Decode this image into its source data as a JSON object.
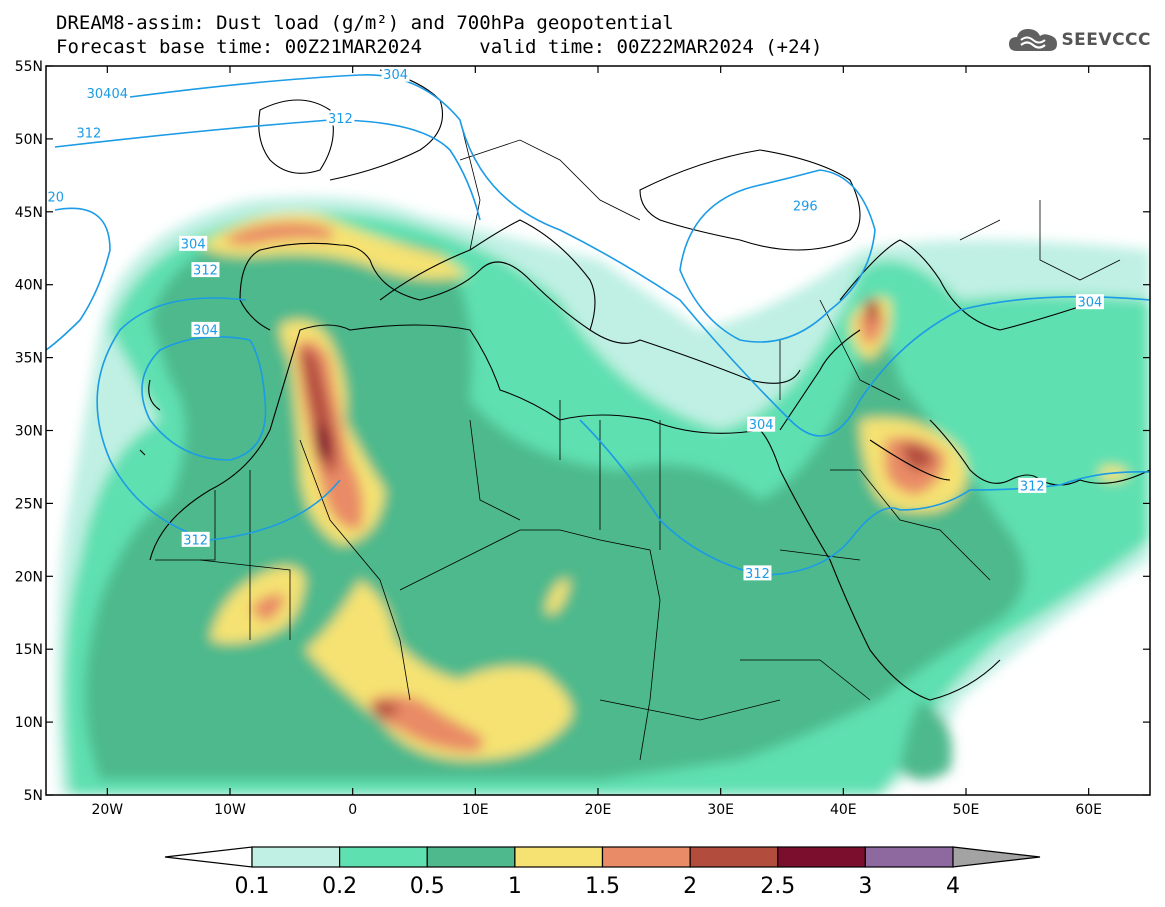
{
  "title": {
    "line1": "DREAM8-assim: Dust load (g/m²) and 700hPa geopotential",
    "base_time_label": "Forecast base time: 00Z21MAR2024",
    "valid_time_label": "valid time: 00Z22MAR2024 (+24)"
  },
  "logo": {
    "text": "SEEVCCC",
    "icon": "cloud-icon"
  },
  "map": {
    "lon_range": [
      -25,
      65
    ],
    "lat_range": [
      5,
      55
    ],
    "lon_ticks": [
      {
        "value": -20,
        "label": "20W"
      },
      {
        "value": -10,
        "label": "10W"
      },
      {
        "value": 0,
        "label": "0"
      },
      {
        "value": 10,
        "label": "10E"
      },
      {
        "value": 20,
        "label": "20E"
      },
      {
        "value": 30,
        "label": "30E"
      },
      {
        "value": 40,
        "label": "40E"
      },
      {
        "value": 50,
        "label": "50E"
      },
      {
        "value": 60,
        "label": "60E"
      }
    ],
    "lat_ticks": [
      {
        "value": 5,
        "label": "5N"
      },
      {
        "value": 10,
        "label": "10N"
      },
      {
        "value": 15,
        "label": "15N"
      },
      {
        "value": 20,
        "label": "20N"
      },
      {
        "value": 25,
        "label": "25N"
      },
      {
        "value": 30,
        "label": "30N"
      },
      {
        "value": 35,
        "label": "35N"
      },
      {
        "value": 40,
        "label": "40N"
      },
      {
        "value": 45,
        "label": "45N"
      },
      {
        "value": 50,
        "label": "50N"
      },
      {
        "value": 55,
        "label": "55N"
      }
    ],
    "contour_labels": [
      {
        "text": "304",
        "lon": 3.5,
        "lat": 54.4
      },
      {
        "text": "304",
        "lon": -13,
        "lat": 42.8
      },
      {
        "text": "30404",
        "lon": -20,
        "lat": 53.1
      },
      {
        "text": "312",
        "lon": -1,
        "lat": 51.4
      },
      {
        "text": "312",
        "lon": -21.5,
        "lat": 50.4
      },
      {
        "text": "20",
        "lon": -24.2,
        "lat": 46
      },
      {
        "text": "312",
        "lon": -12,
        "lat": 41
      },
      {
        "text": "304",
        "lon": -12,
        "lat": 36.9
      },
      {
        "text": "296",
        "lon": 36.9,
        "lat": 45.4
      },
      {
        "text": "304",
        "lon": 60.1,
        "lat": 38.8
      },
      {
        "text": "304",
        "lon": 33.3,
        "lat": 30.4
      },
      {
        "text": "312",
        "lon": -12.8,
        "lat": 22.5
      },
      {
        "text": "312",
        "lon": 33,
        "lat": 20.2
      },
      {
        "text": "312",
        "lon": 55.4,
        "lat": 26.2
      }
    ]
  },
  "colorbar": {
    "levels": [
      "0.1",
      "0.2",
      "0.5",
      "1",
      "1.5",
      "2",
      "2.5",
      "3",
      "4"
    ],
    "colors": [
      "#bff0e3",
      "#5fe0b1",
      "#4eb98c",
      "#f5e272",
      "#e98b66",
      "#b24c3c",
      "#7b0d2d",
      "#8e69a0",
      "#a3a3a3"
    ]
  }
}
